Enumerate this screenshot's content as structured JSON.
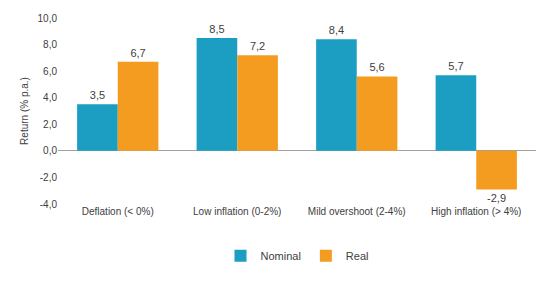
{
  "chart_data": {
    "type": "bar",
    "y_label": "Return (% p.a.)",
    "categories": [
      "Deflation (< 0%)",
      "Low inflation (0-2%)",
      "Mild overshoot (2-4%)",
      "High inflation (> 4%)"
    ],
    "series": [
      {
        "name": "Nominal",
        "color": "#1b9ec2",
        "values": [
          3.5,
          8.5,
          8.4,
          5.7
        ],
        "value_labels": [
          "3,5",
          "8,5",
          "8,4",
          "5,7"
        ]
      },
      {
        "name": "Real",
        "color": "#f39c1f",
        "values": [
          6.7,
          7.2,
          5.6,
          -2.9
        ],
        "value_labels": [
          "6,7",
          "7,2",
          "5,6",
          "-2,9"
        ]
      }
    ],
    "ylim": [
      -4,
      10
    ],
    "yticks": [
      {
        "value": -4,
        "label": "-4,0"
      },
      {
        "value": -2,
        "label": "-2,0"
      },
      {
        "value": 0,
        "label": "0,0"
      },
      {
        "value": 2,
        "label": "2,0"
      },
      {
        "value": 4,
        "label": "4,0"
      },
      {
        "value": 6,
        "label": "6,0"
      },
      {
        "value": 8,
        "label": "8,0"
      },
      {
        "value": 10,
        "label": "10,0"
      }
    ],
    "grid": false,
    "legend": "bottom",
    "data_labels": true
  }
}
